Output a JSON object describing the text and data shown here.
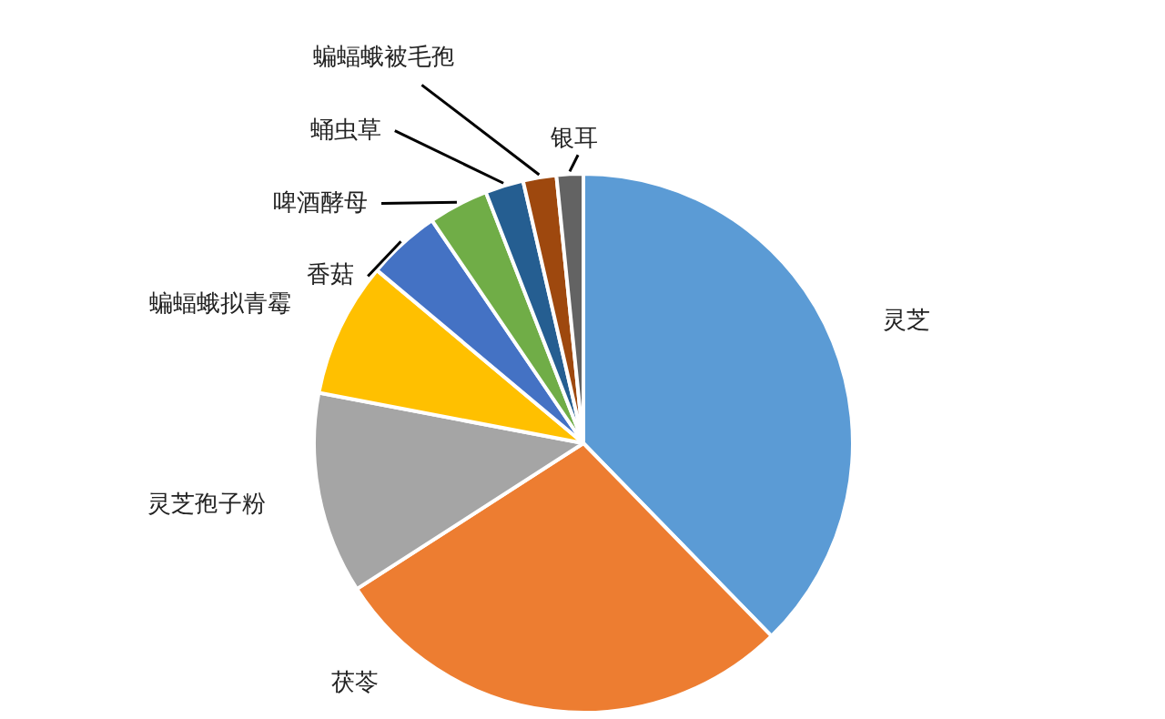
{
  "chart_data": {
    "type": "pie",
    "categories": [
      "灵芝",
      "茯苓",
      "灵芝孢子粉",
      "蝙蝠蛾拟青霉",
      "香菇",
      "啤酒酵母",
      "蛹虫草",
      "蝙蝠蛾被毛孢",
      "银耳"
    ],
    "values": [
      37.7,
      28.2,
      12.1,
      8.1,
      4.4,
      3.6,
      2.3,
      2.0,
      1.6
    ],
    "colors": [
      "#5b9bd5",
      "#ed7d31",
      "#a5a5a5",
      "#ffc000",
      "#4472c4",
      "#70ad47",
      "#255e91",
      "#9e480e",
      "#636363"
    ]
  }
}
